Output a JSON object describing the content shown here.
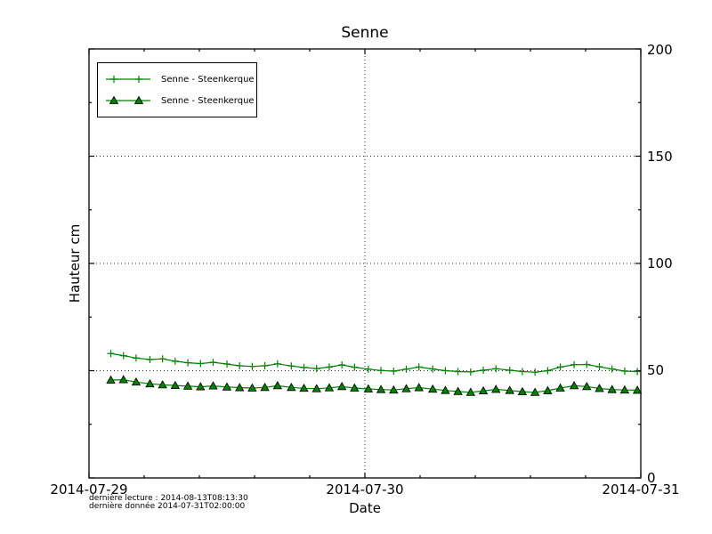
{
  "chart_data": {
    "type": "line",
    "title": "Senne",
    "xlabel": "Date",
    "ylabel": "Hauteur cm",
    "x_tick_labels": [
      "2014-07-29",
      "2014-07-30",
      "2014-07-31"
    ],
    "x_tick_hours": [
      0,
      24,
      48
    ],
    "x_minor_hours": [
      4.8,
      9.6,
      14.4,
      19.2,
      28.8,
      33.6,
      38.4,
      43.2
    ],
    "y_ticks": [
      0,
      50,
      100,
      150,
      200
    ],
    "y_minor_ticks": [
      25,
      75,
      125,
      175
    ],
    "ylim": [
      0,
      200
    ],
    "xlim_hours": [
      0,
      48
    ],
    "grid": "dotted",
    "legend_position": "upper-left",
    "x_hours": [
      1.9,
      3.0,
      4.1,
      5.3,
      6.4,
      7.5,
      8.6,
      9.7,
      10.8,
      12.0,
      13.1,
      14.2,
      15.3,
      16.4,
      17.6,
      18.7,
      19.8,
      20.9,
      22.0,
      23.1,
      24.3,
      25.4,
      26.5,
      27.6,
      28.7,
      29.9,
      31.0,
      32.1,
      33.2,
      34.3,
      35.4,
      36.6,
      37.7,
      38.8,
      39.9,
      41.0,
      42.2,
      43.3,
      44.4,
      45.5,
      46.6,
      47.7
    ],
    "series": [
      {
        "name": "Senne - Steenkerque",
        "marker": "plus",
        "color": "#007f00",
        "values": [
          58.0,
          57.0,
          55.9,
          55.2,
          55.5,
          54.4,
          53.7,
          53.3,
          53.9,
          53.1,
          52.3,
          52.0,
          52.3,
          53.2,
          52.2,
          51.5,
          51.0,
          51.7,
          52.7,
          51.6,
          50.7,
          50.1,
          49.8,
          50.7,
          51.7,
          50.8,
          50.0,
          49.6,
          49.4,
          50.2,
          50.9,
          50.2,
          49.6,
          49.3,
          50.0,
          51.7,
          52.8,
          52.9,
          51.8,
          50.8,
          49.8,
          49.6
        ]
      },
      {
        "name": "Senne - Steenkerque",
        "marker": "triangle",
        "color": "#007f00",
        "marker_edge": "#000000",
        "values": [
          45.6,
          45.8,
          44.7,
          43.9,
          43.4,
          43.1,
          42.8,
          42.5,
          42.9,
          42.4,
          42.1,
          41.9,
          42.2,
          43.0,
          42.2,
          41.8,
          41.6,
          42.0,
          42.6,
          41.9,
          41.5,
          41.2,
          41.0,
          41.6,
          42.1,
          41.4,
          40.8,
          40.3,
          39.9,
          40.6,
          41.3,
          40.8,
          40.2,
          39.9,
          40.7,
          41.9,
          43.0,
          42.6,
          41.7,
          41.2,
          41.0,
          40.9
        ]
      }
    ],
    "footnotes": [
      "dernière lecture : 2014-08-13T08:13:30",
      "dernière donnée  2014-07-31T02:00:00"
    ]
  }
}
